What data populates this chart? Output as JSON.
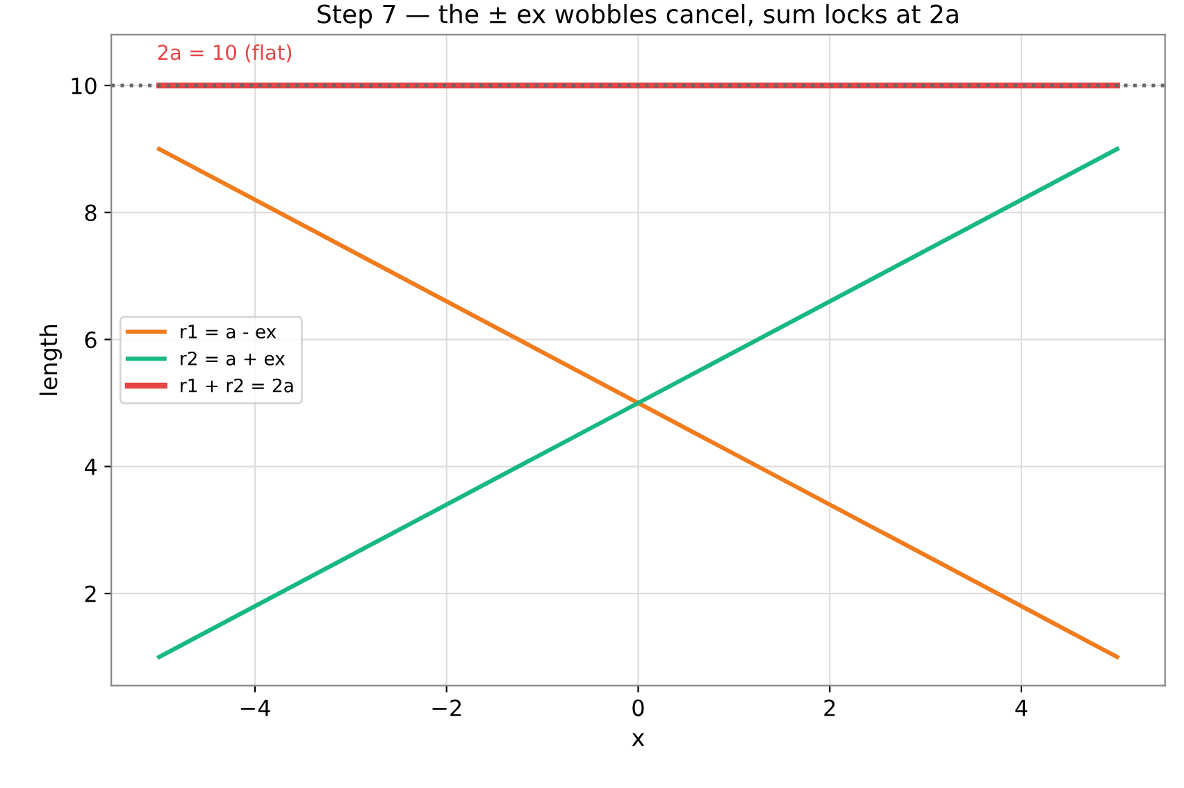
{
  "chart_data": {
    "type": "line",
    "title": "Step 7 — the ± ex wobbles cancel, sum locks at 2a",
    "xlabel": "x",
    "ylabel": "length",
    "series": [
      {
        "name": "r1 = a - ex",
        "color": "#f07c1e",
        "values": [
          9,
          1
        ]
      },
      {
        "name": "r2 = a + ex",
        "color": "#18b884",
        "values": [
          1,
          9
        ]
      },
      {
        "name": "r1 + r2 = 2a",
        "color": "#e84545",
        "values": [
          10,
          10
        ]
      }
    ],
    "ref_lines": [
      {
        "axis": "y",
        "value": 10,
        "color": "#666666",
        "line_style": "dotted"
      }
    ],
    "x": [
      -5,
      5
    ],
    "annotations": [
      "2a = 10 (flat)"
    ],
    "xlim": [
      -5.5,
      5.5
    ],
    "ylim": [
      0.55,
      10.8
    ],
    "xticks": [
      -4,
      -2,
      0,
      2,
      4
    ],
    "yticks": [
      2,
      4,
      6,
      8,
      10
    ],
    "grid": true,
    "legend": "left",
    "line_style": "solid",
    "marker": "none"
  }
}
